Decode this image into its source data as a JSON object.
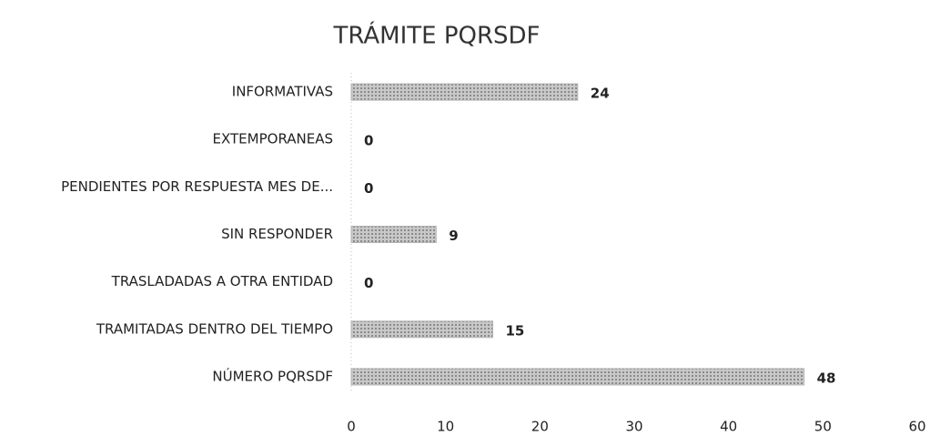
{
  "chart_data": {
    "type": "bar",
    "orientation": "horizontal",
    "title": "TRÁMITE PQRSDF",
    "categories": [
      "INFORMATIVAS",
      "EXTEMPORANEAS",
      "PENDIENTES POR RESPUESTA MES DE...",
      "SIN RESPONDER",
      "TRASLADADAS A OTRA ENTIDAD",
      "TRAMITADAS DENTRO DEL TIEMPO",
      "NÚMERO PQRSDF"
    ],
    "values": [
      24,
      0,
      0,
      9,
      0,
      15,
      48
    ],
    "color": "#b4b4b4",
    "xlim": [
      0,
      60
    ],
    "xticks": [
      0,
      10,
      20,
      30,
      40,
      50,
      60
    ],
    "grid": false
  }
}
